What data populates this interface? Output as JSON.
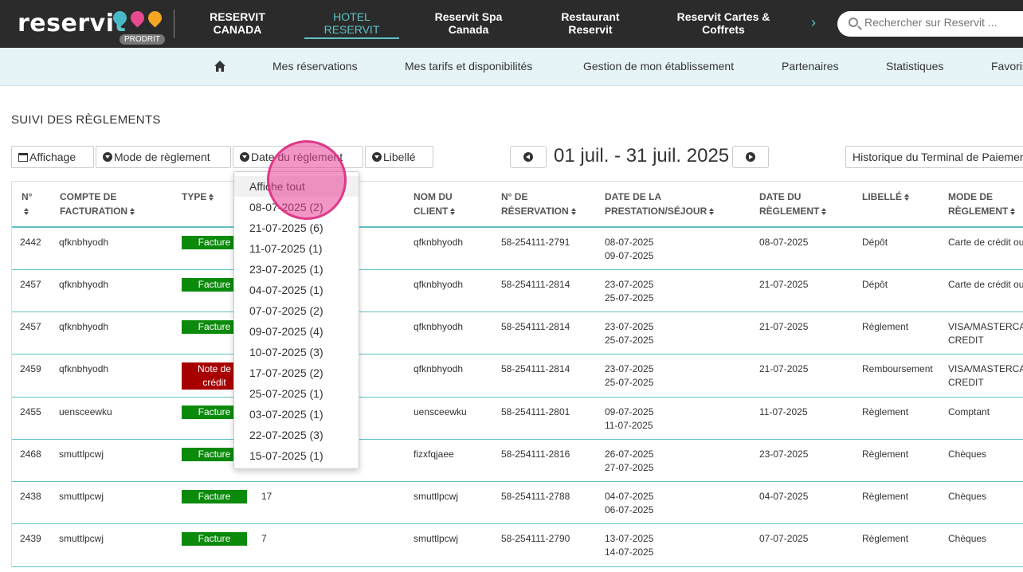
{
  "brand": {
    "name_start": "reservi",
    "name_end": "t",
    "badge": "PRODRIT"
  },
  "top_nav": [
    {
      "line1": "RESERVIT",
      "line2": "CANADA"
    },
    {
      "line1": "HOTEL",
      "line2": "RESERVIT"
    },
    {
      "line1": "Reservit Spa",
      "line2": "Canada"
    },
    {
      "line1": "Restaurant",
      "line2": "Reservit"
    },
    {
      "line1": "Reservit Cartes &",
      "line2": "Coffrets"
    }
  ],
  "search": {
    "placeholder": "Rechercher sur Reservit ..."
  },
  "sub_nav": [
    "Mes réservations",
    "Mes tarifs et disponibilités",
    "Gestion de mon établissement",
    "Partenaires",
    "Statistiques",
    "Favoris"
  ],
  "page_title": "SUIVI DES RÈGLEMENTS",
  "filters": {
    "affichage": "Affichage",
    "mode": "Mode de règlement",
    "date": "Date du règlement",
    "libelle": "Libellé",
    "historique": "Historique du Terminal de Paiement"
  },
  "date_range": "01 juil. - 31 juil. 2025",
  "columns": [
    {
      "l1": "N°",
      "l2": ""
    },
    {
      "l1": "COMPTE DE",
      "l2": "FACTURATION"
    },
    {
      "l1": "TYPE",
      "l2": ""
    },
    {
      "l1": "NOM DU",
      "l2": "CLIENT"
    },
    {
      "l1": "N° DE",
      "l2": "RÉSERVATION"
    },
    {
      "l1": "DATE DE LA",
      "l2": "PRESTATION/SÉJOUR"
    },
    {
      "l1": "DATE DU",
      "l2": "RÈGLEMENT"
    },
    {
      "l1": "LIBELLÉ",
      "l2": ""
    },
    {
      "l1": "MODE DE",
      "l2": "RÈGLEMENT"
    }
  ],
  "rows": [
    {
      "num": "2442",
      "compte": "qfknbhyodh",
      "type_l1": "Facture",
      "type_l2": "",
      "type_kind": "facture",
      "ref": "",
      "client": "qfknbhyodh",
      "resa": "58-254111-2791",
      "presta1": "08-07-2025",
      "presta2": "09-07-2025",
      "date_regl": "08-07-2025",
      "libelle": "Dépôt",
      "mode1": "Carte de crédit ou",
      "mode2": ""
    },
    {
      "num": "2457",
      "compte": "qfknbhyodh",
      "type_l1": "Facture",
      "type_l2": "",
      "type_kind": "facture",
      "ref": "",
      "client": "qfknbhyodh",
      "resa": "58-254111-2814",
      "presta1": "23-07-2025",
      "presta2": "25-07-2025",
      "date_regl": "21-07-2025",
      "libelle": "Dépôt",
      "mode1": "Carte de crédit ou",
      "mode2": ""
    },
    {
      "num": "2457",
      "compte": "qfknbhyodh",
      "type_l1": "Facture",
      "type_l2": "",
      "type_kind": "facture",
      "ref": "",
      "client": "qfknbhyodh",
      "resa": "58-254111-2814",
      "presta1": "23-07-2025",
      "presta2": "25-07-2025",
      "date_regl": "21-07-2025",
      "libelle": "Règlement",
      "mode1": "VISA/MASTERCARD",
      "mode2": "CREDIT"
    },
    {
      "num": "2459",
      "compte": "qfknbhyodh",
      "type_l1": "Note de",
      "type_l2": "crédit",
      "type_kind": "credit",
      "ref": "",
      "client": "qfknbhyodh",
      "resa": "58-254111-2814",
      "presta1": "23-07-2025",
      "presta2": "25-07-2025",
      "date_regl": "21-07-2025",
      "libelle": "Remboursement",
      "mode1": "VISA/MASTERCARD",
      "mode2": "CREDIT"
    },
    {
      "num": "2455",
      "compte": "uensceewku",
      "type_l1": "Facture",
      "type_l2": "",
      "type_kind": "facture",
      "ref": "",
      "client": "uensceewku",
      "resa": "58-254111-2801",
      "presta1": "09-07-2025",
      "presta2": "11-07-2025",
      "date_regl": "11-07-2025",
      "libelle": "Règlement",
      "mode1": "Comptant",
      "mode2": ""
    },
    {
      "num": "2468",
      "compte": "smuttlpcwj",
      "type_l1": "Facture",
      "type_l2": "",
      "type_kind": "facture",
      "ref": "",
      "client": "fizxfqjaee",
      "resa": "58-254111-2816",
      "presta1": "26-07-2025",
      "presta2": "27-07-2025",
      "date_regl": "23-07-2025",
      "libelle": "Règlement",
      "mode1": "Chèques",
      "mode2": ""
    },
    {
      "num": "2438",
      "compte": "smuttlpcwj",
      "type_l1": "Facture",
      "type_l2": "",
      "type_kind": "facture",
      "ref": "17",
      "client": "smuttlpcwj",
      "resa": "58-254111-2788",
      "presta1": "04-07-2025",
      "presta2": "06-07-2025",
      "date_regl": "04-07-2025",
      "libelle": "Règlement",
      "mode1": "Chèques",
      "mode2": ""
    },
    {
      "num": "2439",
      "compte": "smuttlpcwj",
      "type_l1": "Facture",
      "type_l2": "",
      "type_kind": "facture",
      "ref": "7",
      "client": "smuttlpcwj",
      "resa": "58-254111-2790",
      "presta1": "13-07-2025",
      "presta2": "14-07-2025",
      "date_regl": "07-07-2025",
      "libelle": "Règlement",
      "mode1": "Chèques",
      "mode2": ""
    }
  ],
  "date_dropdown": [
    "Affiche tout",
    "08-07-2025 (2)",
    "21-07-2025 (6)",
    "11-07-2025 (1)",
    "23-07-2025 (1)",
    "04-07-2025 (1)",
    "07-07-2025 (2)",
    "09-07-2025 (4)",
    "10-07-2025 (3)",
    "17-07-2025 (2)",
    "25-07-2025 (1)",
    "03-07-2025 (1)",
    "22-07-2025 (3)",
    "15-07-2025 (1)"
  ]
}
